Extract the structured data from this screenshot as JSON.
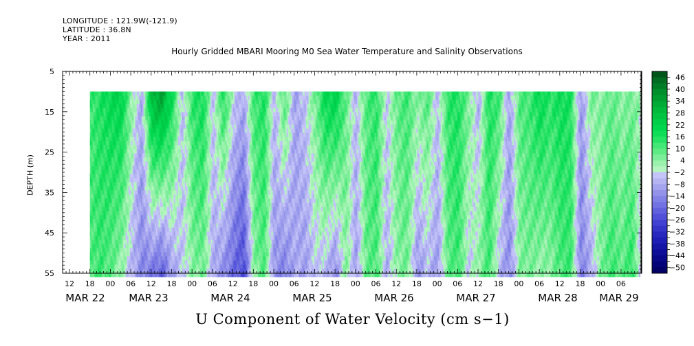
{
  "meta": {
    "longitude": "LONGITUDE : 121.9W(-121.9)",
    "latitude": "LATITUDE : 36.8N",
    "year": "YEAR : 2011"
  },
  "chart_data": {
    "type": "heatmap",
    "title": "Hourly Gridded MBARI Mooring M0 Sea Water Temperature and Salinity Observations",
    "xlabel": "U Component of Water Velocity (cm s−1)",
    "ylabel": "DEPTH (m)",
    "y_axis": {
      "range": [
        5,
        55
      ],
      "inverted": true,
      "ticks": [
        5,
        15,
        25,
        35,
        45,
        55
      ]
    },
    "x_axis": {
      "hour_ticks": [
        "12",
        "18",
        "00",
        "06",
        "12",
        "18",
        "00",
        "06",
        "12",
        "18",
        "00",
        "06",
        "12",
        "18",
        "00",
        "06",
        "12",
        "18",
        "00",
        "06",
        "12",
        "18",
        "00",
        "06",
        "12",
        "18",
        "00",
        "06"
      ],
      "day_labels": [
        "MAR 22",
        "MAR 23",
        "MAR 24",
        "MAR 25",
        "MAR 26",
        "MAR 27",
        "MAR 28",
        "MAR 29"
      ],
      "data_start": "MAR 22 18:00",
      "data_end": "MAR 29 ~12:00",
      "data_depth_top": 10
    },
    "colorbar": {
      "labels": [
        "46",
        "40",
        "34",
        "28",
        "22",
        "16",
        "10",
        "4",
        "−2",
        "−8",
        "−14",
        "−20",
        "−26",
        "−32",
        "−38",
        "−44",
        "−50"
      ],
      "levels_top_to_bottom": [
        49,
        46,
        43,
        40,
        37,
        34,
        31,
        28,
        25,
        22,
        19,
        16,
        13,
        10,
        7,
        4,
        1,
        -2,
        -5,
        -8,
        -11,
        -14,
        -17,
        -20,
        -23,
        -26,
        -29,
        -32,
        -35,
        -38,
        -41,
        -44,
        -47,
        -50
      ],
      "colors": [
        "#00561a",
        "#006b21",
        "#007d26",
        "#008f2b",
        "#009c30",
        "#00aa36",
        "#00b83b",
        "#00c441",
        "#00ce48",
        "#00d74f",
        "#0fdd58",
        "#26e265",
        "#42e775",
        "#5eeb86",
        "#7cee99",
        "#9af2ac",
        "#b4f5bf",
        "#c4c4f8",
        "#b4b4f3",
        "#a3a3ee",
        "#9393ea",
        "#8282e6",
        "#7272e2",
        "#6161dd",
        "#5050d8",
        "#4242d2",
        "#3535ca",
        "#2828bf",
        "#1e1eb4",
        "#1515a6",
        "#0e0e98",
        "#080888",
        "#040478",
        "#020266"
      ]
    },
    "series": [
      {
        "time_hours": 0,
        "u_surface": 12,
        "u_bottom": 10
      },
      {
        "time_hours": 3,
        "u_surface": 16,
        "u_bottom": 12
      },
      {
        "time_hours": 6,
        "u_surface": 20,
        "u_bottom": 8
      },
      {
        "time_hours": 9,
        "u_surface": 22,
        "u_bottom": 2
      },
      {
        "time_hours": 12,
        "u_surface": 4,
        "u_bottom": -6
      },
      {
        "time_hours": 15,
        "u_surface": -8,
        "u_bottom": -14
      },
      {
        "time_hours": 18,
        "u_surface": 30,
        "u_bottom": -18
      },
      {
        "time_hours": 21,
        "u_surface": 34,
        "u_bottom": -22
      },
      {
        "time_hours": 24,
        "u_surface": 18,
        "u_bottom": -10
      },
      {
        "time_hours": 27,
        "u_surface": -6,
        "u_bottom": -4
      },
      {
        "time_hours": 30,
        "u_surface": 14,
        "u_bottom": 4
      },
      {
        "time_hours": 33,
        "u_surface": 18,
        "u_bottom": 6
      },
      {
        "time_hours": 36,
        "u_surface": -4,
        "u_bottom": -8
      },
      {
        "time_hours": 39,
        "u_surface": 16,
        "u_bottom": -14
      },
      {
        "time_hours": 42,
        "u_surface": -2,
        "u_bottom": -20
      },
      {
        "time_hours": 45,
        "u_surface": -8,
        "u_bottom": -26
      },
      {
        "time_hours": 48,
        "u_surface": 12,
        "u_bottom": 4
      },
      {
        "time_hours": 51,
        "u_surface": 16,
        "u_bottom": 10
      },
      {
        "time_hours": 54,
        "u_surface": -6,
        "u_bottom": -12
      },
      {
        "time_hours": 57,
        "u_surface": 10,
        "u_bottom": -16
      },
      {
        "time_hours": 60,
        "u_surface": -10,
        "u_bottom": -8
      },
      {
        "time_hours": 63,
        "u_surface": -4,
        "u_bottom": -10
      },
      {
        "time_hours": 66,
        "u_surface": 6,
        "u_bottom": -4
      },
      {
        "time_hours": 69,
        "u_surface": 20,
        "u_bottom": -6
      },
      {
        "time_hours": 72,
        "u_surface": 22,
        "u_bottom": -14
      },
      {
        "time_hours": 75,
        "u_surface": 8,
        "u_bottom": 4
      },
      {
        "time_hours": 78,
        "u_surface": -6,
        "u_bottom": -10
      },
      {
        "time_hours": 81,
        "u_surface": 10,
        "u_bottom": 8
      },
      {
        "time_hours": 84,
        "u_surface": 14,
        "u_bottom": 10
      },
      {
        "time_hours": 87,
        "u_surface": -4,
        "u_bottom": -8
      },
      {
        "time_hours": 90,
        "u_surface": 8,
        "u_bottom": 4
      },
      {
        "time_hours": 93,
        "u_surface": 12,
        "u_bottom": 6
      },
      {
        "time_hours": 96,
        "u_surface": 4,
        "u_bottom": -12
      },
      {
        "time_hours": 99,
        "u_surface": 10,
        "u_bottom": -6
      },
      {
        "time_hours": 102,
        "u_surface": -6,
        "u_bottom": -10
      },
      {
        "time_hours": 105,
        "u_surface": 14,
        "u_bottom": 8
      },
      {
        "time_hours": 108,
        "u_surface": 16,
        "u_bottom": 12
      },
      {
        "time_hours": 111,
        "u_surface": 6,
        "u_bottom": -4
      },
      {
        "time_hours": 114,
        "u_surface": -8,
        "u_bottom": 4
      },
      {
        "time_hours": 117,
        "u_surface": 16,
        "u_bottom": 12
      },
      {
        "time_hours": 120,
        "u_surface": 12,
        "u_bottom": -6
      },
      {
        "time_hours": 123,
        "u_surface": -10,
        "u_bottom": -14
      },
      {
        "time_hours": 126,
        "u_surface": 10,
        "u_bottom": 4
      },
      {
        "time_hours": 129,
        "u_surface": 12,
        "u_bottom": 6
      },
      {
        "time_hours": 132,
        "u_surface": 20,
        "u_bottom": 2
      },
      {
        "time_hours": 135,
        "u_surface": 14,
        "u_bottom": 4
      },
      {
        "time_hours": 138,
        "u_surface": 18,
        "u_bottom": 10
      },
      {
        "time_hours": 141,
        "u_surface": 16,
        "u_bottom": 12
      },
      {
        "time_hours": 144,
        "u_surface": -12,
        "u_bottom": -16
      },
      {
        "time_hours": 147,
        "u_surface": 6,
        "u_bottom": -8
      },
      {
        "time_hours": 150,
        "u_surface": 4,
        "u_bottom": 6
      },
      {
        "time_hours": 153,
        "u_surface": 8,
        "u_bottom": 12
      },
      {
        "time_hours": 156,
        "u_surface": 4,
        "u_bottom": 8
      },
      {
        "time_hours": 159,
        "u_surface": 6,
        "u_bottom": 14
      },
      {
        "time_hours": 162,
        "u_surface": 2,
        "u_bottom": -10
      },
      {
        "time_hours": 165,
        "u_surface": 0,
        "u_bottom": -14
      }
    ]
  }
}
